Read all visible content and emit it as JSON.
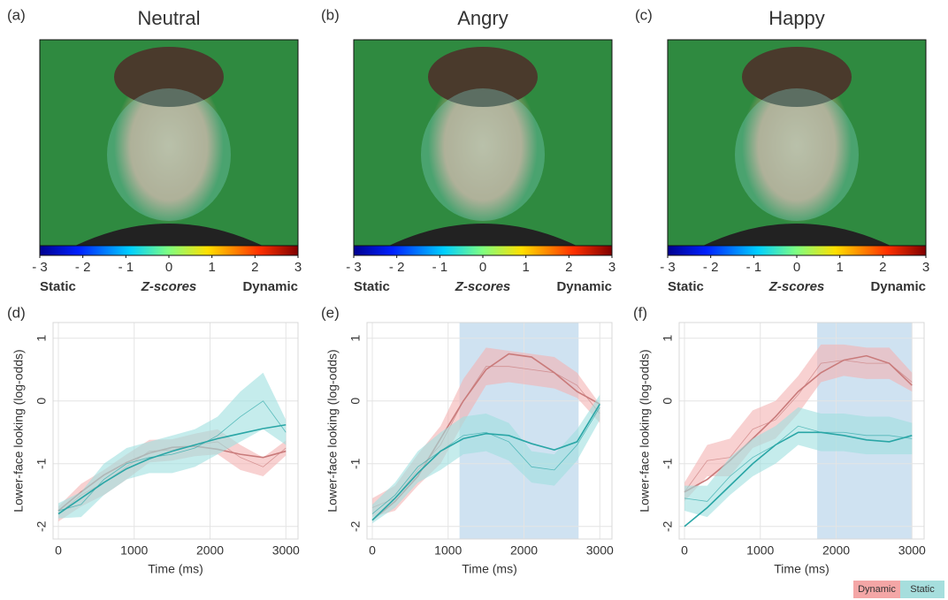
{
  "chart_data": [
    {
      "type": "image",
      "label": "(a)",
      "title": "Neutral",
      "colorbar": {
        "lim": [
          -3,
          3
        ],
        "ticks": [
          {
            "value": -3,
            "label": "- 3"
          },
          {
            "value": -2,
            "label": "- 2"
          },
          {
            "value": -1,
            "label": "- 1"
          },
          0,
          1,
          2,
          3
        ],
        "low_label": "Static",
        "mid_label": "Z-scores",
        "high_label": "Dynamic",
        "low_color": "#2a7ab8",
        "high_color": "#c0262d"
      }
    },
    {
      "type": "image",
      "label": "(b)",
      "title": "Angry",
      "colorbar": {
        "lim": [
          -3,
          3
        ],
        "ticks": [
          {
            "value": -3,
            "label": "- 3"
          },
          {
            "value": -2,
            "label": "- 2"
          },
          {
            "value": -1,
            "label": "- 1"
          },
          0,
          1,
          2,
          3
        ],
        "low_label": "Static",
        "mid_label": "Z-scores",
        "high_label": "Dynamic",
        "low_color": "#2a7ab8",
        "high_color": "#c0262d"
      }
    },
    {
      "type": "image",
      "label": "(c)",
      "title": "Happy",
      "colorbar": {
        "lim": [
          -3,
          3
        ],
        "ticks": [
          {
            "value": -3,
            "label": "- 3"
          },
          {
            "value": -2,
            "label": "- 2"
          },
          {
            "value": -1,
            "label": "- 1"
          },
          0,
          1,
          2,
          3
        ],
        "low_label": "Static",
        "mid_label": "Z-scores",
        "high_label": "Dynamic",
        "low_color": "#2a7ab8",
        "high_color": "#c0262d"
      }
    },
    {
      "type": "line",
      "label": "(d)",
      "xlabel": "Time (ms)",
      "ylabel": "Lower-face looking (log-odds)",
      "xlim": [
        -70,
        3160
      ],
      "ylim": [
        -2.2,
        1.25
      ],
      "xticks": [
        0,
        1000,
        2000,
        3000
      ],
      "yticks": [
        -2,
        -1,
        0,
        1
      ],
      "grid": true,
      "x": [
        0,
        300,
        600,
        900,
        1200,
        1500,
        1800,
        2100,
        2400,
        2700,
        3000
      ],
      "series": [
        {
          "color": "#c97b7b",
          "band_color": "#f4b3b3",
          "fit": [
            -1.75,
            -1.45,
            -1.18,
            -0.98,
            -0.83,
            -0.74,
            -0.72,
            -0.77,
            -0.85,
            -0.9,
            -0.8
          ],
          "observed": [
            -1.8,
            -1.5,
            -1.3,
            -1.05,
            -0.8,
            -0.78,
            -0.7,
            -0.65,
            -0.9,
            -1.05,
            -0.75
          ],
          "error": [
            0.12,
            0.18,
            0.2,
            0.2,
            0.18,
            0.17,
            0.18,
            0.2,
            0.2,
            0.15,
            0.12
          ]
        },
        {
          "color": "#2aa6a6",
          "band_color": "#9fdfe0",
          "fit": [
            -1.8,
            -1.55,
            -1.3,
            -1.08,
            -0.92,
            -0.8,
            -0.7,
            -0.6,
            -0.52,
            -0.44,
            -0.38
          ],
          "observed": [
            -1.75,
            -1.65,
            -1.25,
            -1.0,
            -0.9,
            -0.85,
            -0.75,
            -0.55,
            -0.25,
            0.0,
            -0.5
          ],
          "error": [
            0.12,
            0.2,
            0.25,
            0.25,
            0.25,
            0.3,
            0.3,
            0.3,
            0.4,
            0.45,
            0.2
          ]
        }
      ]
    },
    {
      "type": "line",
      "label": "(e)",
      "xlabel": "Time (ms)",
      "ylabel": "Lower-face looking (log-odds)",
      "xlim": [
        -70,
        3160
      ],
      "ylim": [
        -2.2,
        1.25
      ],
      "xticks": [
        0,
        1000,
        2000,
        3000
      ],
      "yticks": [
        -2,
        -1,
        0,
        1
      ],
      "grid": true,
      "highlight": [
        1150,
        2720
      ],
      "x": [
        0,
        300,
        600,
        900,
        1200,
        1500,
        1800,
        2100,
        2400,
        2700,
        3000
      ],
      "series": [
        {
          "color": "#c97b7b",
          "band_color": "#f4b3b3",
          "fit": [
            -1.9,
            -1.6,
            -1.2,
            -0.6,
            0.0,
            0.5,
            0.75,
            0.7,
            0.45,
            0.15,
            -0.05
          ],
          "observed": [
            -1.7,
            -1.55,
            -1.1,
            -0.7,
            0.0,
            0.55,
            0.55,
            0.5,
            0.45,
            0.25,
            -0.2
          ],
          "error": [
            0.15,
            0.2,
            0.25,
            0.3,
            0.35,
            0.3,
            0.25,
            0.25,
            0.25,
            0.2,
            0.15
          ]
        },
        {
          "color": "#2aa6a6",
          "band_color": "#9fdfe0",
          "fit": [
            -1.9,
            -1.55,
            -1.15,
            -0.8,
            -0.6,
            -0.52,
            -0.55,
            -0.68,
            -0.78,
            -0.65,
            -0.05
          ],
          "observed": [
            -1.8,
            -1.5,
            -1.05,
            -0.8,
            -0.55,
            -0.5,
            -0.65,
            -1.05,
            -1.1,
            -0.7,
            -0.1
          ],
          "error": [
            0.15,
            0.2,
            0.25,
            0.3,
            0.3,
            0.3,
            0.3,
            0.25,
            0.25,
            0.25,
            0.2
          ]
        }
      ]
    },
    {
      "type": "line",
      "label": "(f)",
      "xlabel": "Time (ms)",
      "ylabel": "Lower-face looking (log-odds)",
      "xlim": [
        -70,
        3160
      ],
      "ylim": [
        -2.2,
        1.25
      ],
      "xticks": [
        0,
        1000,
        2000,
        3000
      ],
      "yticks": [
        -2,
        -1,
        0,
        1
      ],
      "grid": true,
      "highlight": [
        1750,
        3000
      ],
      "x": [
        0,
        300,
        600,
        900,
        1200,
        1500,
        1800,
        2100,
        2400,
        2700,
        3000
      ],
      "series": [
        {
          "color": "#c97b7b",
          "band_color": "#f4b3b3",
          "fit": [
            -1.45,
            -1.25,
            -0.95,
            -0.6,
            -0.25,
            0.15,
            0.45,
            0.65,
            0.72,
            0.6,
            0.25
          ],
          "observed": [
            -1.45,
            -0.95,
            -0.9,
            -0.45,
            -0.3,
            0.1,
            0.6,
            0.65,
            0.6,
            0.6,
            0.3
          ],
          "error": [
            0.15,
            0.25,
            0.3,
            0.3,
            0.3,
            0.3,
            0.3,
            0.25,
            0.25,
            0.25,
            0.15
          ]
        },
        {
          "color": "#2aa6a6",
          "band_color": "#9fdfe0",
          "fit": [
            -2.0,
            -1.7,
            -1.35,
            -1.0,
            -0.7,
            -0.5,
            -0.5,
            -0.55,
            -0.62,
            -0.65,
            -0.55
          ],
          "observed": [
            -1.55,
            -1.6,
            -1.2,
            -0.9,
            -0.7,
            -0.4,
            -0.5,
            -0.5,
            -0.55,
            -0.55,
            -0.6
          ],
          "error": [
            0.2,
            0.25,
            0.3,
            0.3,
            0.3,
            0.3,
            0.3,
            0.3,
            0.3,
            0.3,
            0.25
          ]
        }
      ]
    }
  ],
  "legend": [
    {
      "name": "Dynamic",
      "color": "#f4a6a6"
    },
    {
      "name": "Static",
      "color": "#a6dedd"
    }
  ]
}
